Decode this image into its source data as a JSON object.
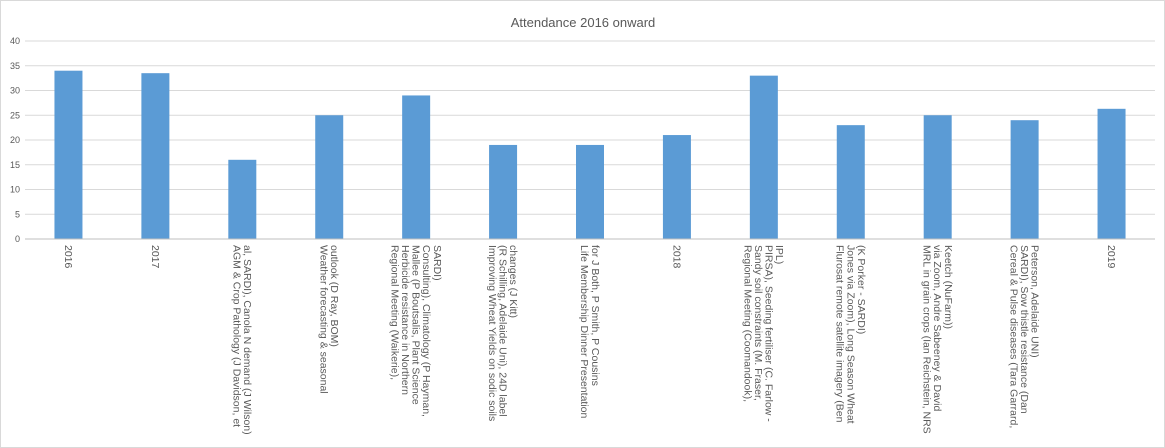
{
  "chart_data": {
    "type": "bar",
    "title": "Attendance 2016 onward",
    "xlabel": "",
    "ylabel": "",
    "ylim": [
      0,
      40
    ],
    "yticks": [
      0,
      5,
      10,
      15,
      20,
      25,
      30,
      35,
      40
    ],
    "grid": true,
    "legend": "none",
    "bar_color": "#5B9BD5",
    "categories": [
      [
        "2016"
      ],
      [
        "2017"
      ],
      [
        "AGM & Crop Pathology (J Davidson, et",
        "al, SARDI), Canola N demand (J Wilson)"
      ],
      [
        "Weather forecasting & seasonal",
        "outlook (D Ray, BOM)"
      ],
      [
        "Regional Meeting (Waikerie),",
        "Herbicide resistance in Northern",
        "Mallee (P Boutsalis, Plant Science",
        "Consulting), Climatology (P Hayman,",
        "SARDI)"
      ],
      [
        "Improving Wheat Yields on sodic soils",
        "(R Schilling, Adelaide Uni), 24D label",
        "changes (J Kitt)"
      ],
      [
        "Life Membership Dinner Presentation",
        "for J Both, P Smith, P Cousins"
      ],
      [
        "2018"
      ],
      [
        "Regional Meeting (Coomandook),",
        "Sandy soil constraints (M. Fraser,",
        "PIRSA), Seeding fertiliser (C. Farlow -",
        "IPL)"
      ],
      [
        "Flurosat remote satellite imagery (Ben",
        "Jones via Zoom), Long Season Wheat",
        "(K Porker - SARDI)"
      ],
      [
        "MRL in grain crops (Ian Reichstein, NRS",
        "via Zoom, Andre Sabeeney & David",
        "Keetch (NuFarm))"
      ],
      [
        "Cereal & Pulse diseases (Tara Garrard,",
        "SARDI), Sow thistle resistance (Dan",
        "Peterson, Adelaide UNI)"
      ],
      [
        "2019"
      ]
    ],
    "values": [
      34,
      33.5,
      16,
      25,
      29,
      19,
      19,
      21,
      33,
      23,
      25,
      24,
      26.3
    ]
  }
}
